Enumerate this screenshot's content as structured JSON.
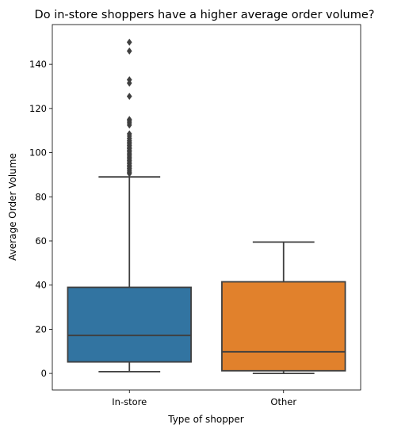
{
  "chart_data": {
    "type": "box",
    "title": "Do in-store shoppers have a higher average order volume?",
    "xlabel": "Type of shopper",
    "ylabel": "Average Order Volume",
    "ylim": [
      -7.5,
      158
    ],
    "yticks": [
      0,
      20,
      40,
      60,
      80,
      100,
      120,
      140
    ],
    "grid": false,
    "categories": [
      "In-store",
      "Other"
    ],
    "boxes": [
      {
        "name": "In-store",
        "color": "#3274a1",
        "whisker_low": 0.8,
        "q1": 5.2,
        "median": 17.2,
        "q3": 39.0,
        "whisker_high": 89.0,
        "outliers": [
          90.5,
          91.2,
          92.0,
          92.8,
          93.5,
          94.2,
          95.0,
          95.8,
          96.5,
          97.3,
          98.0,
          98.8,
          99.5,
          100.3,
          101.0,
          101.8,
          102.5,
          103.3,
          104.0,
          104.8,
          105.5,
          106.5,
          107.5,
          108.5,
          112.5,
          113.5,
          114.3,
          115.0,
          125.5,
          131.5,
          133.0,
          146.0,
          150.0
        ]
      },
      {
        "name": "Other",
        "color": "#e1812c",
        "whisker_low": 0.0,
        "q1": 1.2,
        "median": 9.8,
        "q3": 41.5,
        "whisker_high": 59.5,
        "outliers": []
      }
    ]
  }
}
